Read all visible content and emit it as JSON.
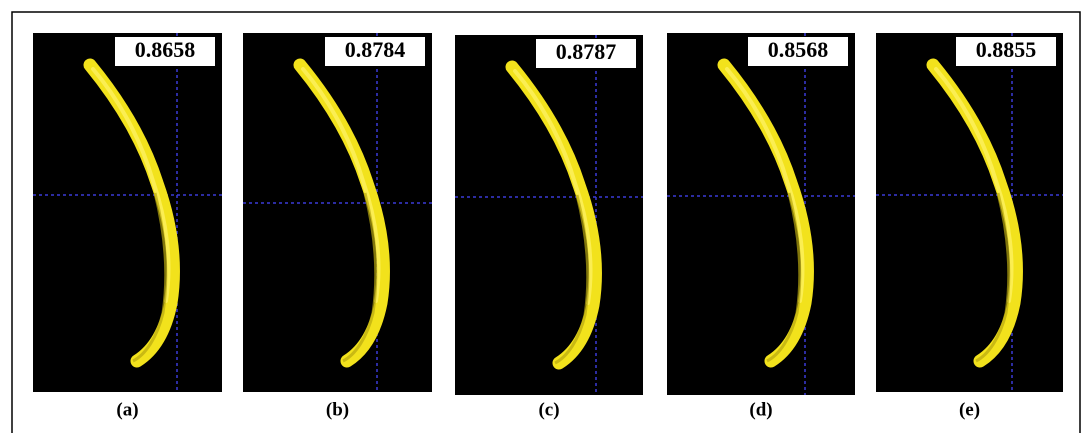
{
  "panels": [
    {
      "score": "0.8658",
      "label": "(a)"
    },
    {
      "score": "0.8784",
      "label": "(b)"
    },
    {
      "score": "0.8787",
      "label": "(c)"
    },
    {
      "score": "0.8568",
      "label": "(d)"
    },
    {
      "score": "0.8855",
      "label": "(e)"
    }
  ]
}
